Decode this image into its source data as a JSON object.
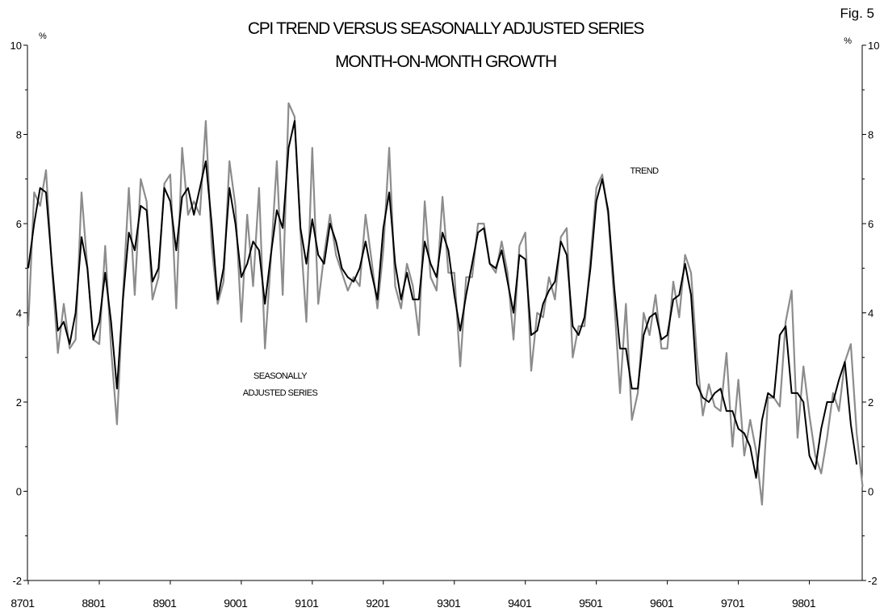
{
  "figure_label": "Fig. 5",
  "chart_data": {
    "type": "line",
    "title": [
      "CPI TREND VERSUS SEASONALLY ADJUSTED SERIES",
      "MONTH-ON-MONTH GROWTH"
    ],
    "y_unit_left": "%",
    "y_unit_right": "%",
    "ylim": [
      -2,
      10
    ],
    "y_ticks": [
      -2,
      0,
      2,
      4,
      6,
      8,
      10
    ],
    "x_tick_labels": [
      "8701",
      "8801",
      "8901",
      "9001",
      "9101",
      "9201",
      "9301",
      "9401",
      "9501",
      "9601",
      "9701",
      "9801"
    ],
    "x_start": "8701",
    "x_frequency": "monthly",
    "grid": false,
    "annotations": [
      {
        "text": "TREND",
        "series": "trend"
      },
      {
        "text": "SEASONALLY",
        "series": "seasonally_adjusted"
      },
      {
        "text": "ADJUSTED SERIES",
        "series": "seasonally_adjusted"
      }
    ],
    "series": [
      {
        "key": "seasonally_adjusted",
        "color": "#8c8c8c",
        "values": [
          3.7,
          6.7,
          6.4,
          7.2,
          5.0,
          3.1,
          4.2,
          3.2,
          3.4,
          6.7,
          5.0,
          3.4,
          3.3,
          5.5,
          3.2,
          1.5,
          4.4,
          6.8,
          4.4,
          7.0,
          6.5,
          4.3,
          4.8,
          6.9,
          7.1,
          4.1,
          7.7,
          6.2,
          6.5,
          6.2,
          8.3,
          5.5,
          4.2,
          4.7,
          7.4,
          6.4,
          3.8,
          6.2,
          4.6,
          6.8,
          3.2,
          5.2,
          7.4,
          4.4,
          8.7,
          8.4,
          5.8,
          3.8,
          7.7,
          4.2,
          5.3,
          6.2,
          5.3,
          4.9,
          4.5,
          4.8,
          4.6,
          6.2,
          5.2,
          4.1,
          5.4,
          7.7,
          4.6,
          4.1,
          5.1,
          4.6,
          3.5,
          6.5,
          4.8,
          4.5,
          6.6,
          4.9,
          4.9,
          2.8,
          4.8,
          4.8,
          6.0,
          6.0,
          5.1,
          4.9,
          5.6,
          4.9,
          3.4,
          5.5,
          5.8,
          2.7,
          4.0,
          3.9,
          4.8,
          4.3,
          5.7,
          5.9,
          3.0,
          3.7,
          3.7,
          5.2,
          6.8,
          7.1,
          6.2,
          4.3,
          2.2,
          4.2,
          1.6,
          2.2,
          4.0,
          3.5,
          4.4,
          3.2,
          3.2,
          4.7,
          3.9,
          5.3,
          4.9,
          3.0,
          1.7,
          2.4,
          1.9,
          1.8,
          3.1,
          1.0,
          2.5,
          0.8,
          1.6,
          0.9,
          -0.3,
          2.1,
          2.1,
          1.9,
          3.8,
          4.5,
          1.2,
          2.8,
          1.7,
          0.8,
          0.4,
          1.2,
          2.2,
          1.8,
          2.9,
          3.3,
          1.3,
          0.1
        ]
      },
      {
        "key": "trend",
        "color": "#000000",
        "values": [
          5.0,
          6.0,
          6.8,
          6.7,
          5.1,
          3.6,
          3.8,
          3.3,
          4.0,
          5.7,
          5.0,
          3.4,
          3.8,
          4.9,
          3.8,
          2.3,
          4.3,
          5.8,
          5.4,
          6.4,
          6.3,
          4.7,
          5.0,
          6.8,
          6.5,
          5.4,
          6.6,
          6.8,
          6.2,
          6.8,
          7.4,
          6.0,
          4.3,
          5.0,
          6.8,
          6.0,
          4.8,
          5.1,
          5.6,
          5.4,
          4.2,
          5.3,
          6.3,
          5.9,
          7.7,
          8.3,
          5.9,
          5.1,
          6.1,
          5.3,
          5.1,
          6.0,
          5.6,
          5.0,
          4.8,
          4.7,
          5.0,
          5.6,
          4.9,
          4.3,
          5.9,
          6.7,
          5.1,
          4.3,
          4.9,
          4.3,
          4.3,
          5.6,
          5.1,
          4.8,
          5.8,
          5.4,
          4.4,
          3.6,
          4.4,
          5.1,
          5.8,
          5.9,
          5.1,
          5.0,
          5.4,
          4.7,
          4.0,
          5.3,
          5.2,
          3.5,
          3.6,
          4.2,
          4.5,
          4.7,
          5.6,
          5.3,
          3.7,
          3.5,
          3.9,
          5.0,
          6.5,
          7.0,
          6.3,
          4.6,
          3.2,
          3.2,
          2.3,
          2.3,
          3.5,
          3.9,
          4.0,
          3.4,
          3.5,
          4.3,
          4.4,
          5.1,
          4.4,
          2.4,
          2.1,
          2.0,
          2.2,
          2.3,
          1.8,
          1.8,
          1.4,
          1.3,
          1.0,
          0.3,
          1.6,
          2.2,
          2.1,
          3.5,
          3.7,
          2.2,
          2.2,
          2.0,
          0.8,
          0.5,
          1.4,
          2.0,
          2.0,
          2.5,
          2.9,
          1.5,
          0.6
        ]
      }
    ]
  }
}
